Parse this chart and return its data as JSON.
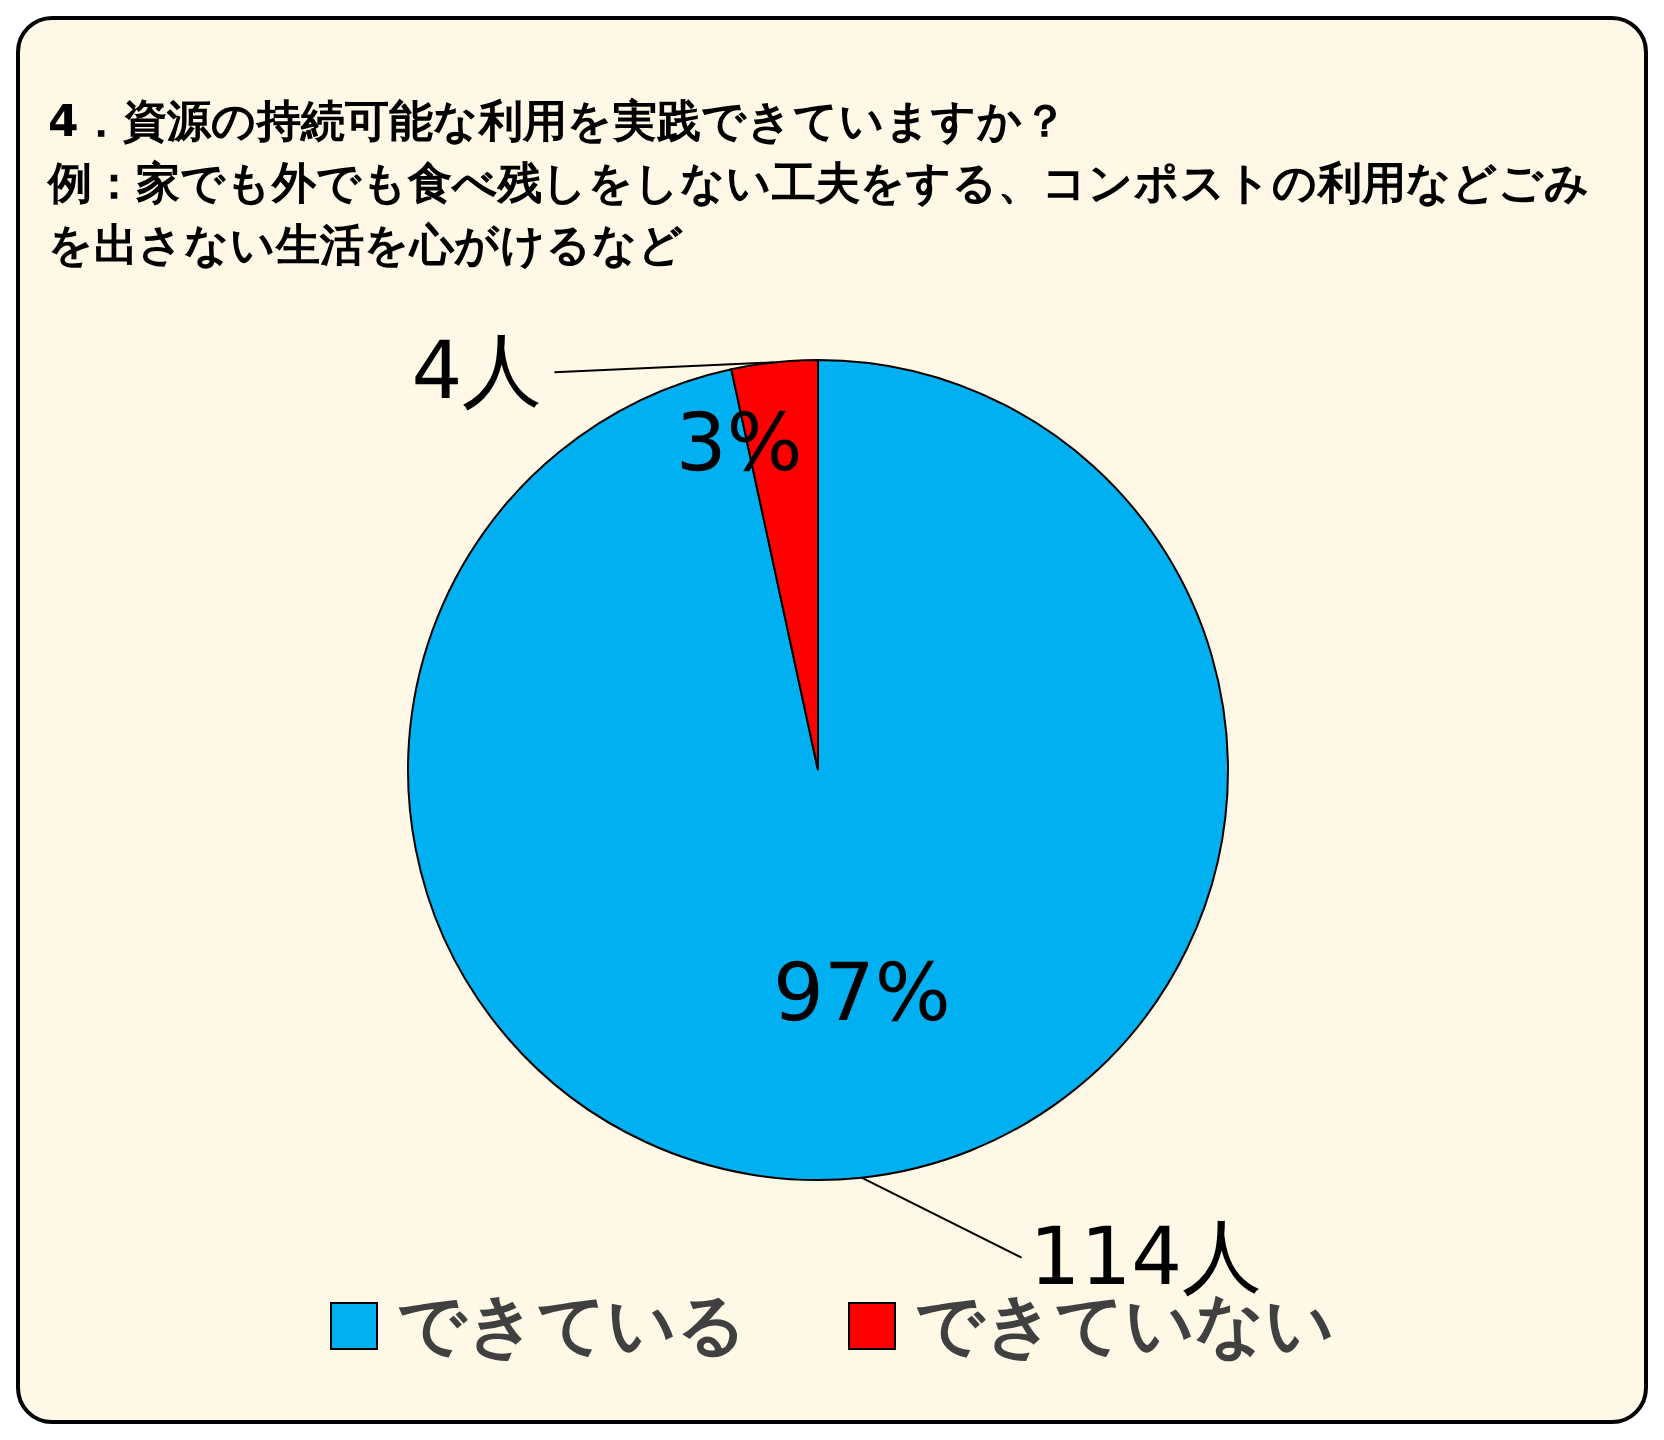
{
  "chart_data": {
    "type": "pie",
    "title": "4．資源の持続可能な利用を実践できていますか？",
    "subtitle": "例：家でも外でも食べ残しをしない工夫をする、コンポストの利用などごみを出さない生活を心がけるなど",
    "categories": [
      "できている",
      "できていない"
    ],
    "values": [
      114,
      4
    ],
    "colors": [
      "#00b0f0",
      "#ff0000"
    ],
    "value_labels": [
      "114人",
      "4人"
    ],
    "annotations": [
      "97%",
      "3%"
    ],
    "legend": "bottom"
  }
}
